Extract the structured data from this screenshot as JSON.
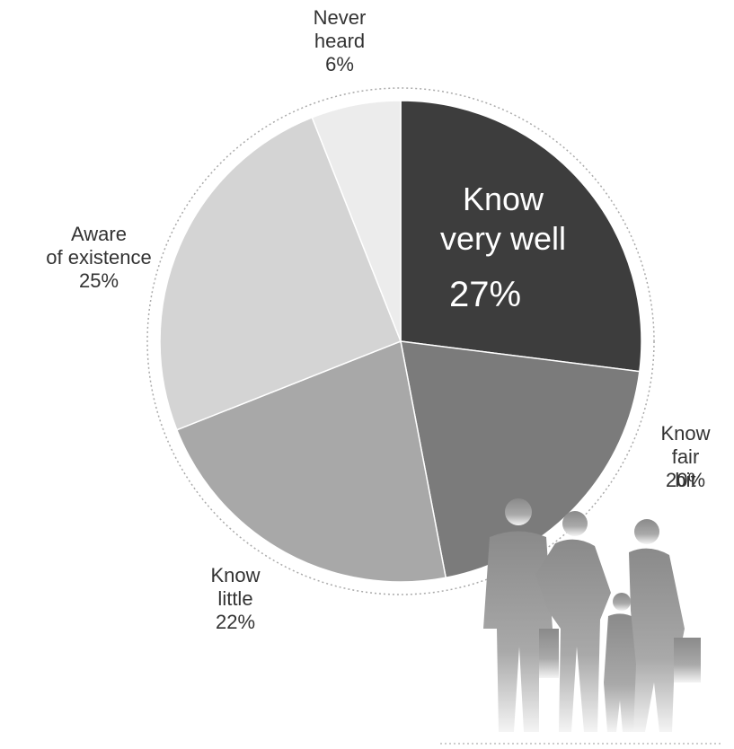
{
  "chart_data": {
    "type": "pie",
    "categories": [
      "Know\nvery well",
      "Know\nfair bit",
      "Know\nlittle",
      "Aware\nof existence",
      "Never\nheard"
    ],
    "values": [
      27,
      20,
      22,
      25,
      6
    ],
    "value_labels": [
      "27%",
      "20%",
      "22%",
      "25%",
      "6%"
    ],
    "colors": [
      "#3d3d3d",
      "#7b7b7b",
      "#a8a8a8",
      "#d4d4d4",
      "#ececec"
    ]
  }
}
